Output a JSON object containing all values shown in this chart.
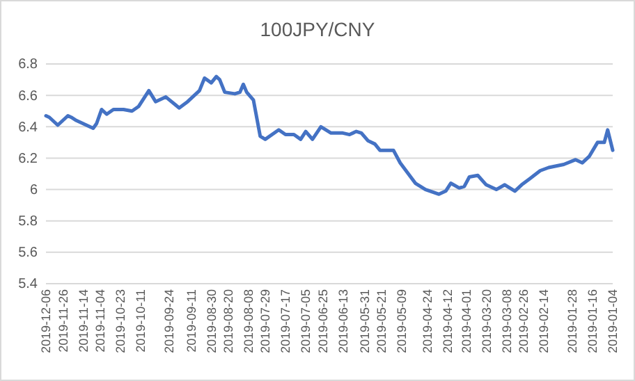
{
  "chart_data": {
    "type": "line",
    "title": "100JPY/CNY",
    "x": [
      "2019-12-06",
      "2019-12-04",
      "2019-11-29",
      "2019-11-23",
      "2019-11-21",
      "2019-11-18",
      "2019-11-16",
      "2019-11-08",
      "2019-11-06",
      "2019-11-03",
      "2019-10-31",
      "2019-10-27",
      "2019-10-21",
      "2019-10-16",
      "2019-10-12",
      "2019-10-06",
      "2019-10-02",
      "2019-09-26",
      "2019-09-18",
      "2019-09-13",
      "2019-09-06",
      "2019-09-03",
      "2019-08-30",
      "2019-08-27",
      "2019-08-25",
      "2019-08-22",
      "2019-08-16",
      "2019-08-13",
      "2019-08-11",
      "2019-08-09",
      "2019-08-05",
      "2019-08-01",
      "2019-07-29",
      "2019-07-21",
      "2019-07-17",
      "2019-07-12",
      "2019-07-08",
      "2019-07-05",
      "2019-07-01",
      "2019-06-26",
      "2019-06-20",
      "2019-06-13",
      "2019-06-09",
      "2019-06-05",
      "2019-06-02",
      "2019-05-29",
      "2019-05-25",
      "2019-05-22",
      "2019-05-14",
      "2019-05-10",
      "2019-05-01",
      "2019-04-25",
      "2019-04-17",
      "2019-04-13",
      "2019-04-10",
      "2019-04-05",
      "2019-04-02",
      "2019-03-30",
      "2019-03-25",
      "2019-03-20",
      "2019-03-14",
      "2019-03-09",
      "2019-03-03",
      "2019-02-27",
      "2019-02-22",
      "2019-02-16",
      "2019-02-11",
      "2019-02-02",
      "2019-01-26",
      "2019-01-22",
      "2019-01-18",
      "2019-01-13",
      "2019-01-09",
      "2019-01-07",
      "2019-01-04"
    ],
    "series": [
      {
        "color": "#4472c4",
        "values": [
          6.47,
          6.46,
          6.41,
          6.47,
          6.46,
          6.44,
          6.43,
          6.39,
          6.42,
          6.51,
          6.48,
          6.51,
          6.51,
          6.5,
          6.53,
          6.63,
          6.56,
          6.59,
          6.52,
          6.56,
          6.63,
          6.71,
          6.68,
          6.72,
          6.7,
          6.62,
          6.61,
          6.62,
          6.67,
          6.62,
          6.57,
          6.34,
          6.32,
          6.38,
          6.35,
          6.35,
          6.32,
          6.37,
          6.32,
          6.4,
          6.36,
          6.36,
          6.35,
          6.37,
          6.36,
          6.31,
          6.29,
          6.25,
          6.25,
          6.17,
          6.04,
          6.0,
          5.97,
          5.99,
          6.04,
          6.01,
          6.02,
          6.08,
          6.09,
          6.03,
          6.0,
          6.03,
          5.99,
          6.03,
          6.07,
          6.12,
          6.14,
          6.16,
          6.19,
          6.17,
          6.21,
          6.3,
          6.3,
          6.38,
          6.25
        ]
      }
    ],
    "xlim": [
      "2019-12-06",
      "2019-01-04"
    ],
    "xticks": [
      "2019-12-06",
      "2019-11-26",
      "2019-11-14",
      "2019-11-04",
      "2019-10-23",
      "2019-10-11",
      "2019-09-24",
      "2019-09-11",
      "2019-08-30",
      "2019-08-20",
      "2019-08-08",
      "2019-07-29",
      "2019-07-17",
      "2019-07-05",
      "2019-06-25",
      "2019-06-13",
      "2019-05-31",
      "2019-05-21",
      "2019-05-09",
      "2019-04-24",
      "2019-04-12",
      "2019-04-01",
      "2019-03-20",
      "2019-03-08",
      "2019-02-26",
      "2019-02-14",
      "2019-01-28",
      "2019-01-16",
      "2019-01-04"
    ],
    "ylim": [
      5.4,
      6.8
    ],
    "yticks": [
      5.4,
      5.6,
      5.8,
      6,
      6.2,
      6.4,
      6.6,
      6.8
    ],
    "grid": "y",
    "marker": "none",
    "line_style": "solid"
  }
}
